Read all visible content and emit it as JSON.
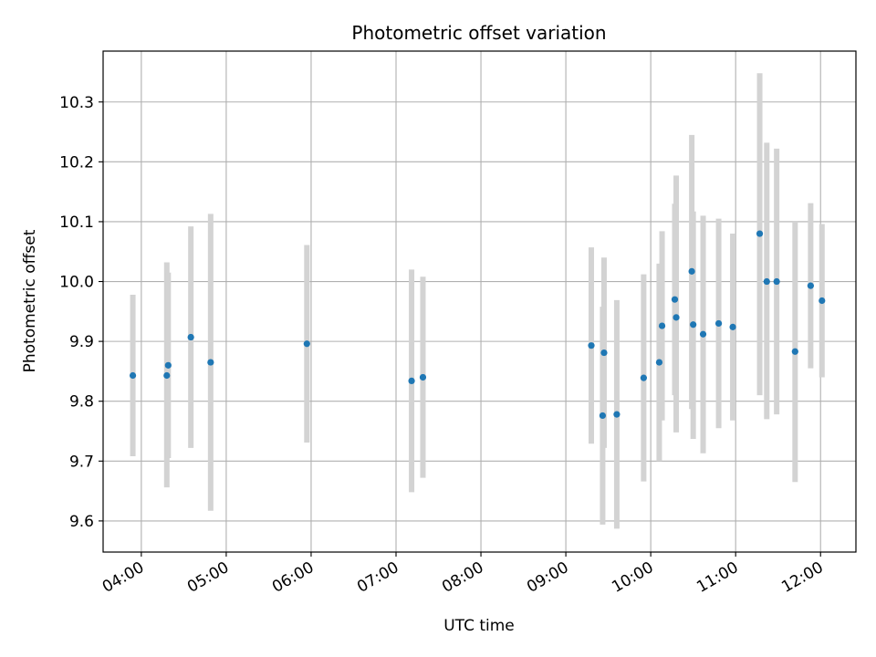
{
  "chart_data": {
    "type": "scatter",
    "title": "Photometric offset variation",
    "xlabel": "UTC time",
    "ylabel": "Photometric offset",
    "xlim": [
      "03:33",
      "12:25"
    ],
    "ylim": [
      9.548,
      10.385
    ],
    "x_ticks": [
      "04:00",
      "05:00",
      "06:00",
      "07:00",
      "08:00",
      "09:00",
      "10:00",
      "11:00",
      "12:00"
    ],
    "y_ticks": [
      9.6,
      9.7,
      9.8,
      9.9,
      10.0,
      10.1,
      10.2,
      10.3
    ],
    "y_tick_labels": [
      "9.6",
      "9.7",
      "9.8",
      "9.9",
      "10.0",
      "10.1",
      "10.2",
      "10.3"
    ],
    "grid": true,
    "colors": {
      "marker": "#1f77b4",
      "errorbar": "#d3d3d3",
      "grid": "#b0b0b0"
    },
    "points": [
      {
        "t": "03:54",
        "y": 9.843,
        "lo": 9.708,
        "hi": 9.978
      },
      {
        "t": "04:18",
        "y": 9.843,
        "lo": 9.656,
        "hi": 10.032
      },
      {
        "t": "04:19",
        "y": 9.86,
        "lo": 9.705,
        "hi": 10.015
      },
      {
        "t": "04:35",
        "y": 9.907,
        "lo": 9.722,
        "hi": 10.092
      },
      {
        "t": "04:49",
        "y": 9.865,
        "lo": 9.617,
        "hi": 10.113
      },
      {
        "t": "05:57",
        "y": 9.896,
        "lo": 9.731,
        "hi": 10.061
      },
      {
        "t": "07:11",
        "y": 9.834,
        "lo": 9.648,
        "hi": 10.02
      },
      {
        "t": "07:19",
        "y": 9.84,
        "lo": 9.672,
        "hi": 10.008
      },
      {
        "t": "09:18",
        "y": 9.893,
        "lo": 9.729,
        "hi": 10.057
      },
      {
        "t": "09:26",
        "y": 9.776,
        "lo": 9.594,
        "hi": 9.958
      },
      {
        "t": "09:27",
        "y": 9.881,
        "lo": 9.722,
        "hi": 10.04
      },
      {
        "t": "09:36",
        "y": 9.778,
        "lo": 9.587,
        "hi": 9.969
      },
      {
        "t": "09:55",
        "y": 9.839,
        "lo": 9.666,
        "hi": 10.012
      },
      {
        "t": "10:06",
        "y": 9.865,
        "lo": 9.7,
        "hi": 10.03
      },
      {
        "t": "10:08",
        "y": 9.926,
        "lo": 9.768,
        "hi": 10.084
      },
      {
        "t": "10:17",
        "y": 9.97,
        "lo": 9.81,
        "hi": 10.13
      },
      {
        "t": "10:18",
        "y": 9.94,
        "lo": 9.748,
        "hi": 10.177
      },
      {
        "t": "10:29",
        "y": 10.017,
        "lo": 9.787,
        "hi": 10.245
      },
      {
        "t": "10:30",
        "y": 9.928,
        "lo": 9.737,
        "hi": 10.117
      },
      {
        "t": "10:37",
        "y": 9.912,
        "lo": 9.713,
        "hi": 10.11
      },
      {
        "t": "10:48",
        "y": 9.93,
        "lo": 9.755,
        "hi": 10.105
      },
      {
        "t": "10:58",
        "y": 9.924,
        "lo": 9.768,
        "hi": 10.08
      },
      {
        "t": "11:17",
        "y": 10.08,
        "lo": 9.81,
        "hi": 10.348
      },
      {
        "t": "11:22",
        "y": 10.0,
        "lo": 9.77,
        "hi": 10.232
      },
      {
        "t": "11:29",
        "y": 10.0,
        "lo": 9.778,
        "hi": 10.222
      },
      {
        "t": "11:42",
        "y": 9.883,
        "lo": 9.665,
        "hi": 10.1
      },
      {
        "t": "11:53",
        "y": 9.993,
        "lo": 9.855,
        "hi": 10.131
      },
      {
        "t": "12:01",
        "y": 9.968,
        "lo": 9.84,
        "hi": 10.096
      }
    ]
  }
}
